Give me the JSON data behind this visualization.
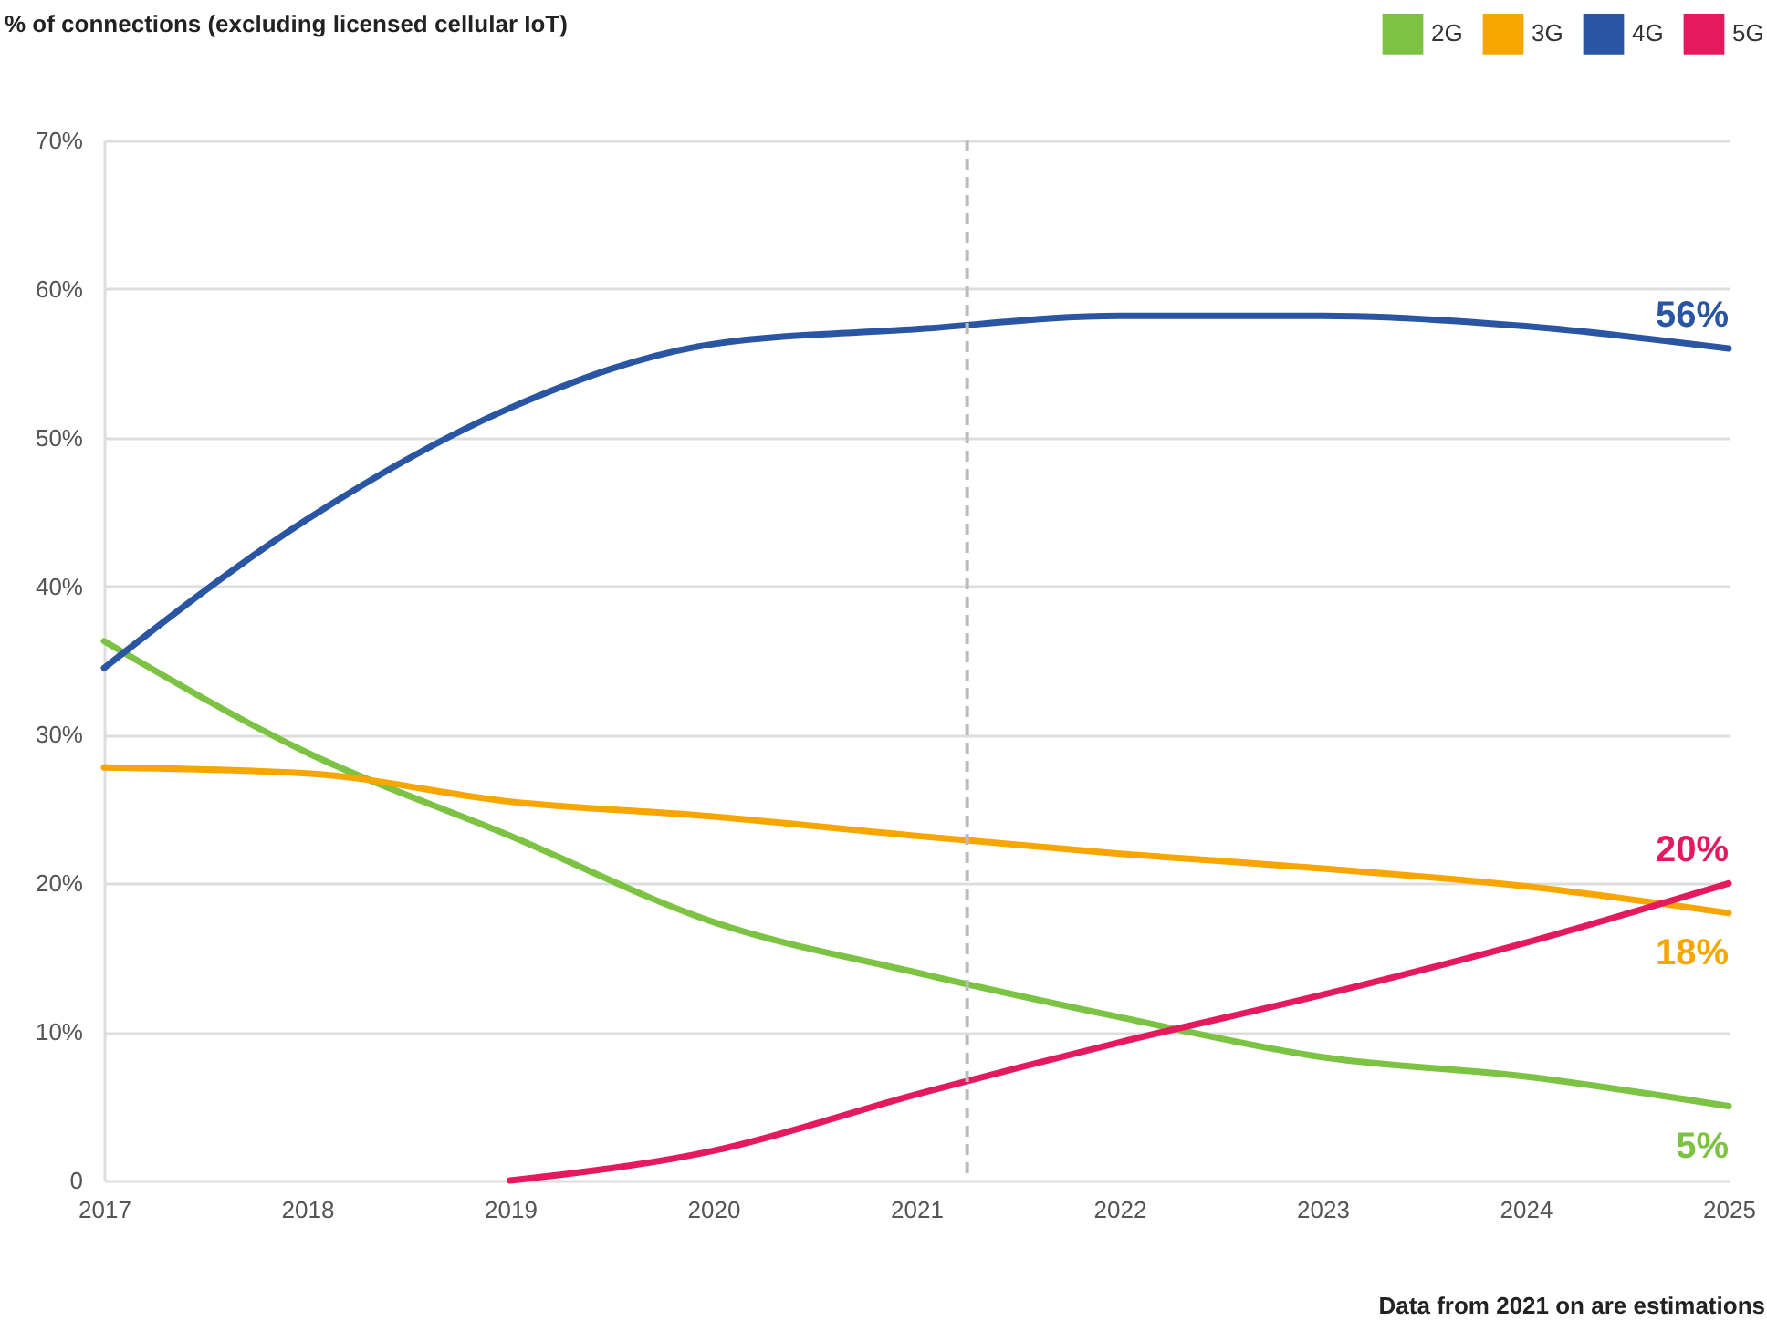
{
  "chart_data": {
    "type": "line",
    "ylabel": "% of connections (excluding licensed cellular IoT)",
    "x": [
      2017,
      2018,
      2019,
      2020,
      2021,
      2022,
      2023,
      2024,
      2025
    ],
    "series": [
      {
        "name": "2G",
        "color": "#7cc243",
        "values": [
          36.3,
          28.8,
          23.2,
          17.4,
          14,
          11,
          8.3,
          7,
          5
        ],
        "value_labels": [
          null,
          null,
          null,
          null,
          null,
          null,
          null,
          null,
          "5%"
        ]
      },
      {
        "name": "3G",
        "color": "#f7a600",
        "values": [
          27.8,
          27.4,
          25.5,
          24.5,
          23.2,
          22,
          21,
          19.8,
          18
        ],
        "value_labels": [
          null,
          null,
          null,
          null,
          null,
          null,
          null,
          null,
          "18%"
        ]
      },
      {
        "name": "4G",
        "color": "#2a55a3",
        "values": [
          34.5,
          44.5,
          52,
          56.3,
          57.3,
          58.2,
          58.2,
          57.5,
          56
        ],
        "value_labels": [
          null,
          null,
          null,
          null,
          null,
          null,
          null,
          null,
          "56%"
        ]
      },
      {
        "name": "5G",
        "color": "#e5195e",
        "values": [
          null,
          null,
          0,
          2,
          5.8,
          9.3,
          12.5,
          16,
          20
        ],
        "value_labels": [
          null,
          null,
          null,
          null,
          null,
          null,
          null,
          null,
          "20%"
        ]
      }
    ],
    "xlim": [
      2017,
      2025
    ],
    "xticks": [
      2017,
      2018,
      2019,
      2020,
      2021,
      2022,
      2023,
      2024,
      2025
    ],
    "ylim": [
      0,
      70
    ],
    "yticks": [
      0,
      {
        "value": 10,
        "label": "10%"
      },
      {
        "value": 20,
        "label": "20%"
      },
      {
        "value": 30,
        "label": "30%"
      },
      {
        "value": 40,
        "label": "40%"
      },
      {
        "value": 50,
        "label": "50%"
      },
      {
        "value": 60,
        "label": "60%"
      },
      {
        "value": 70,
        "label": "70%"
      }
    ],
    "grid": "y",
    "legend": "top right",
    "marker": "none",
    "line_style": "solid",
    "ref_lines": [
      {
        "axis": "x",
        "value": 2021.25,
        "line_style": "dashed",
        "color": "#bbbbbb"
      }
    ],
    "annotations": [
      "Data from 2021 on are estimations"
    ]
  }
}
